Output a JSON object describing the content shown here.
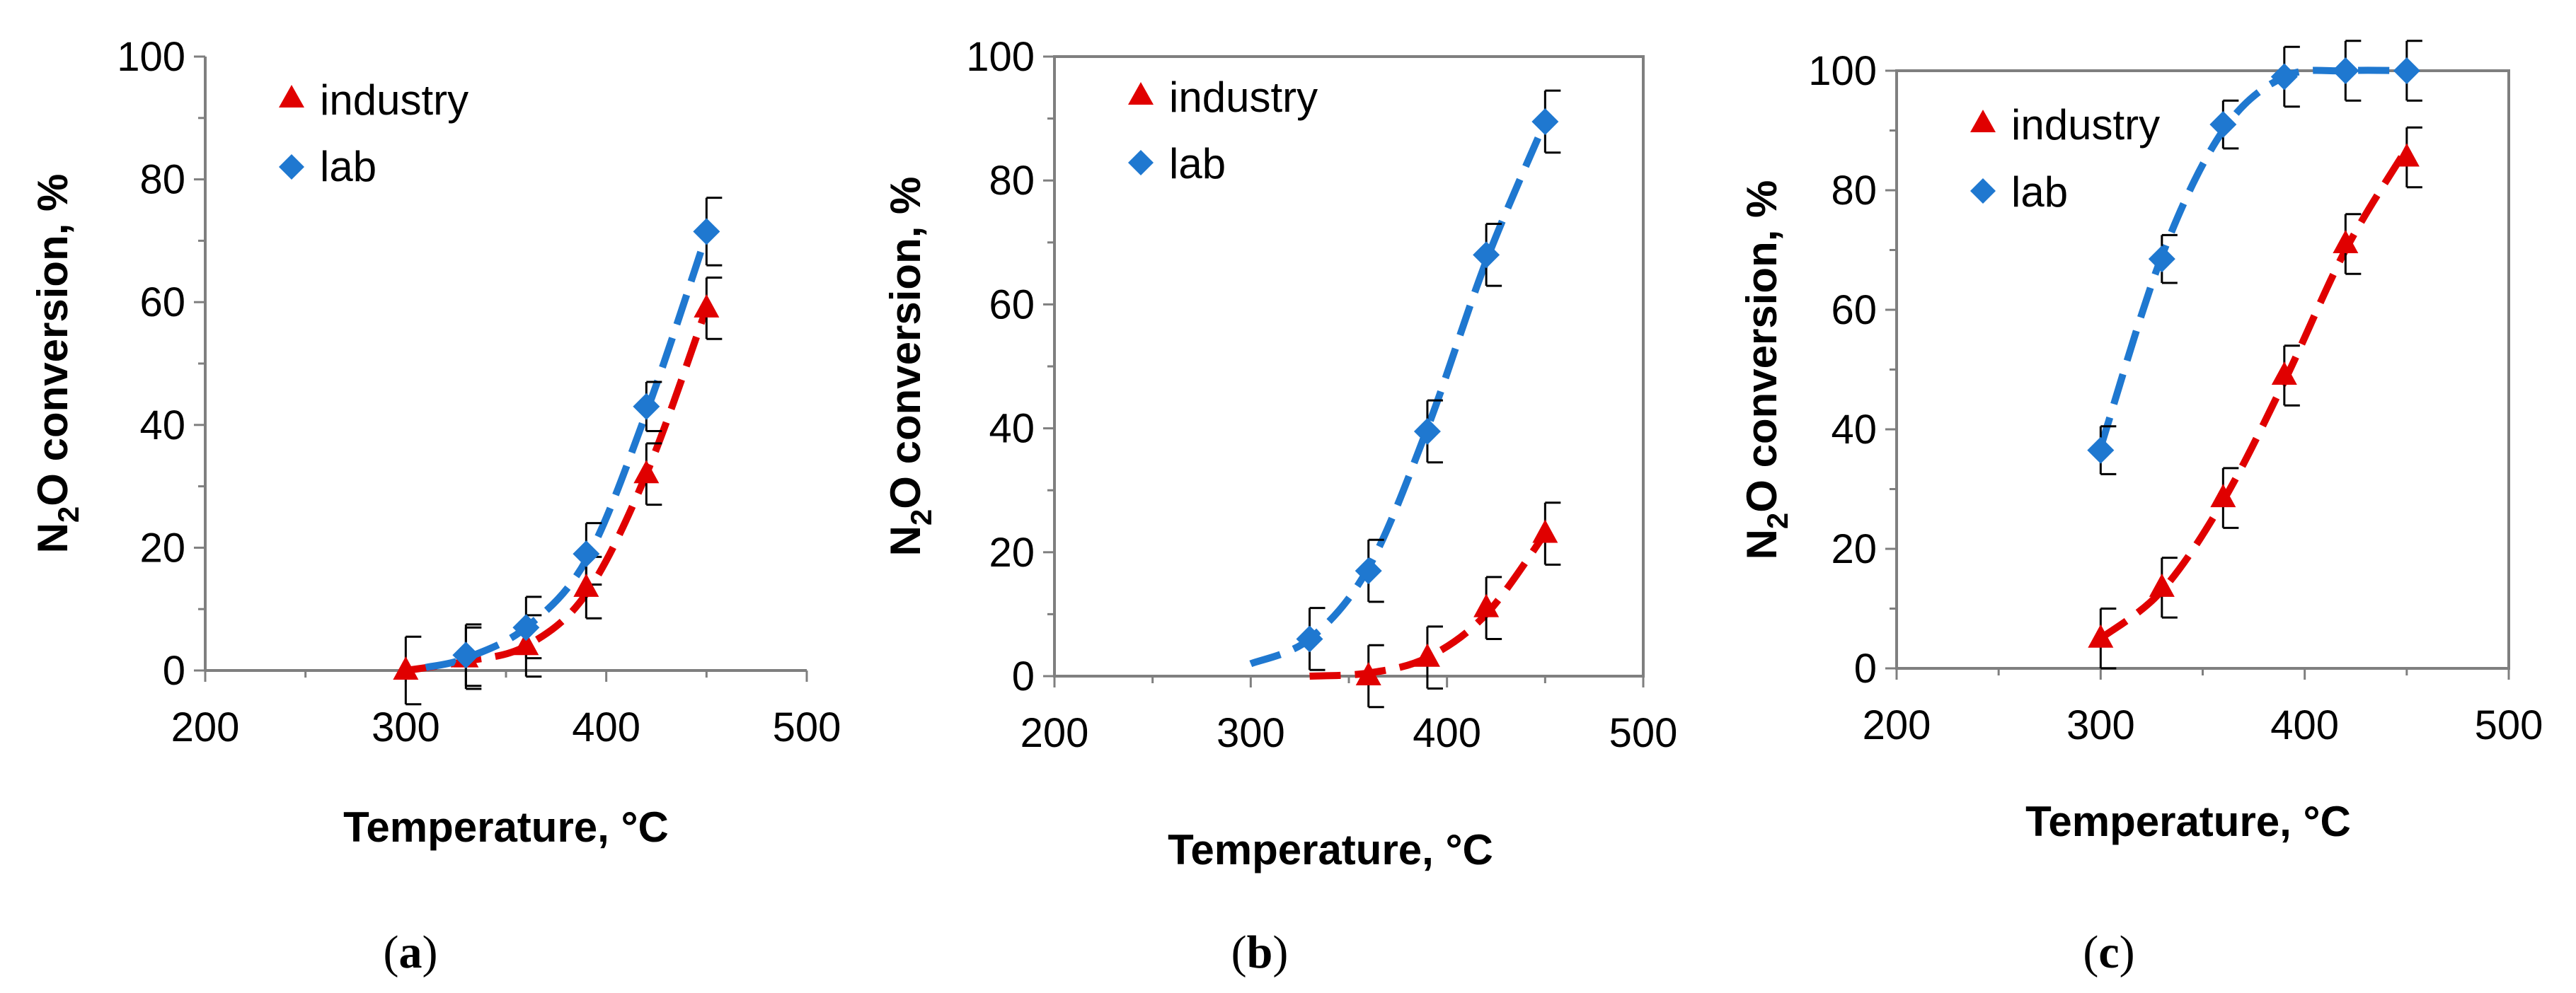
{
  "chart_data": [
    {
      "type": "scatter",
      "panel_label": "a",
      "caption_prefix": "(",
      "caption_suffix": ")",
      "xlabel": "Temperature, °C",
      "ylabel": {
        "main": "N",
        "sub": "2",
        "rest": "O conversion, %"
      },
      "xlim": [
        200,
        500
      ],
      "ylim": [
        0,
        100
      ],
      "xticks": [
        "200",
        "300",
        "400",
        "500"
      ],
      "yticks": [
        "0",
        "20",
        "40",
        "60",
        "80",
        "100"
      ],
      "legend": [
        "industry",
        "lab"
      ],
      "legend_position": "top-left",
      "series": [
        {
          "name": "industry",
          "color": "#e00000",
          "marker": "triangle",
          "x": [
            300,
            330,
            360,
            390,
            420,
            450
          ],
          "y": [
            0,
            2,
            4,
            13.5,
            32,
            59
          ],
          "err": [
            5.5,
            5,
            5,
            5,
            5,
            5
          ],
          "fit_x": [
            300,
            330,
            360,
            390,
            420,
            450
          ],
          "fit_y": [
            0,
            1.5,
            4,
            12.5,
            32,
            59
          ]
        },
        {
          "name": "lab",
          "color": "#1f78d0",
          "marker": "diamond",
          "x": [
            330,
            360,
            390,
            420,
            450
          ],
          "y": [
            2.5,
            7,
            19,
            43,
            71.5
          ],
          "err": [
            5,
            5,
            5,
            4,
            5.5
          ],
          "fit_x": [
            310,
            330,
            360,
            390,
            420,
            450
          ],
          "fit_y": [
            0.5,
            2,
            7,
            18,
            42,
            71
          ]
        }
      ]
    },
    {
      "type": "scatter",
      "panel_label": "b",
      "caption_prefix": "(",
      "caption_suffix": ")",
      "xlabel": "Temperature, °C",
      "ylabel": {
        "main": "N",
        "sub": "2",
        "rest": "O conversion, %"
      },
      "xlim": [
        200,
        500
      ],
      "ylim": [
        0,
        100
      ],
      "xticks": [
        "200",
        "300",
        "400",
        "500"
      ],
      "yticks": [
        "0",
        "20",
        "40",
        "60",
        "80",
        "100"
      ],
      "legend": [
        "industry",
        "lab"
      ],
      "legend_position": "top-left",
      "series": [
        {
          "name": "industry",
          "color": "#e00000",
          "marker": "triangle",
          "x": [
            360,
            390,
            420,
            450
          ],
          "y": [
            0,
            3,
            11,
            23
          ],
          "err": [
            5,
            5,
            5,
            5
          ],
          "fit_x": [
            330,
            360,
            390,
            420,
            450
          ],
          "fit_y": [
            0,
            0.5,
            3,
            10,
            23
          ]
        },
        {
          "name": "lab",
          "color": "#1f78d0",
          "marker": "diamond",
          "x": [
            330,
            360,
            390,
            420,
            450
          ],
          "y": [
            6,
            17,
            39.5,
            68,
            89.5
          ],
          "err": [
            5,
            5,
            5,
            5,
            5
          ],
          "fit_x": [
            300,
            330,
            360,
            390,
            420,
            450
          ],
          "fit_y": [
            2,
            6,
            17.5,
            40,
            67,
            89.5
          ]
        }
      ]
    },
    {
      "type": "scatter",
      "panel_label": "c",
      "caption_prefix": "(",
      "caption_suffix": ")",
      "xlabel": "Temperature, °C",
      "ylabel": {
        "main": "N",
        "sub": "2",
        "rest": "O conversion, %"
      },
      "xlim": [
        200,
        500
      ],
      "ylim": [
        0,
        100
      ],
      "xticks": [
        "200",
        "300",
        "400",
        "500"
      ],
      "yticks": [
        "0",
        "20",
        "40",
        "60",
        "80",
        "100"
      ],
      "legend": [
        "industry",
        "lab"
      ],
      "legend_position": "top-left",
      "series": [
        {
          "name": "industry",
          "color": "#e00000",
          "marker": "triangle",
          "x": [
            300,
            330,
            360,
            390,
            420,
            450
          ],
          "y": [
            5,
            13.5,
            28.5,
            49,
            71,
            85.5
          ],
          "err": [
            5,
            5,
            5,
            5,
            5,
            5
          ],
          "fit_x": [
            300,
            330,
            360,
            390,
            420,
            450
          ],
          "fit_y": [
            5,
            13,
            28,
            48,
            70,
            87
          ]
        },
        {
          "name": "lab",
          "color": "#1f78d0",
          "marker": "diamond",
          "x": [
            300,
            330,
            360,
            390,
            420,
            450
          ],
          "y": [
            36.5,
            68.5,
            91,
            99,
            100,
            100
          ],
          "err": [
            4,
            4,
            4,
            5,
            5,
            5
          ],
          "fit_x": [
            300,
            330,
            360,
            390,
            420,
            450
          ],
          "fit_y": [
            37,
            69,
            90,
            99,
            100,
            100
          ]
        }
      ]
    }
  ]
}
